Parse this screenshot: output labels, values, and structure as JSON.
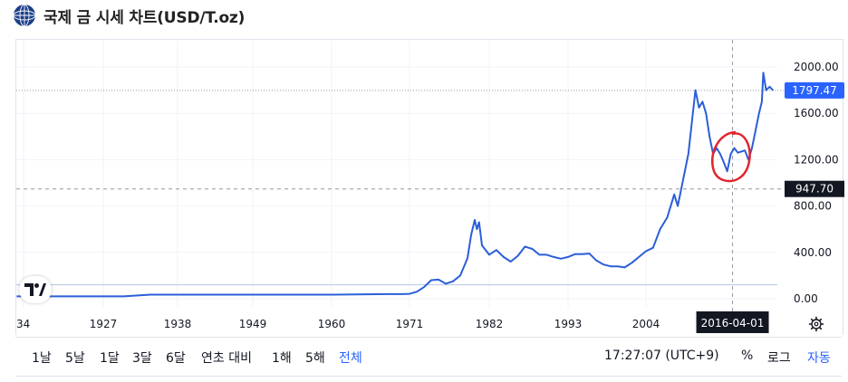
{
  "header": {
    "title": "국제 금 시세 차트(USD/T.oz)",
    "logo_icon": "globe-logo-icon"
  },
  "chart_data": {
    "type": "line",
    "x_tick_labels": [
      "34",
      "1927",
      "1938",
      "1949",
      "1960",
      "1971",
      "1982",
      "1993",
      "2004"
    ],
    "y_tick_labels": [
      "2000.00",
      "1600.00",
      "1200.00",
      "800.00",
      "400.00",
      "0.00"
    ],
    "y_ticks": [
      2000,
      1600,
      1200,
      800,
      400,
      0
    ],
    "ylim": [
      -100,
      2100
    ],
    "xlim": [
      1914,
      2022
    ],
    "series": [
      {
        "color": "#2b5ed8",
        "x": [
          1914,
          1920,
          1930,
          1934,
          1950,
          1960,
          1968,
          1970,
          1971,
          1972,
          1973,
          1974,
          1975,
          1976,
          1977,
          1978,
          1979,
          1979.5,
          1980,
          1980.3,
          1980.6,
          1981,
          1982,
          1983,
          1984,
          1985,
          1986,
          1987,
          1988,
          1989,
          1990,
          1991,
          1992,
          1993,
          1994,
          1995,
          1996,
          1997,
          1998,
          1999,
          2000,
          2001,
          2002,
          2003,
          2004,
          2005,
          2006,
          2007,
          2008,
          2008.5,
          2009,
          2010,
          2011,
          2011.5,
          2012,
          2012.5,
          2013,
          2013.5,
          2014,
          2014.5,
          2015,
          2015.5,
          2016,
          2016.5,
          2017,
          2018,
          2018.5,
          2019,
          2019.5,
          2020,
          2020.4,
          2020.6,
          2021,
          2021.5,
          2022
        ],
        "y": [
          20,
          20,
          20,
          35,
          35,
          35,
          40,
          40,
          42,
          60,
          100,
          160,
          165,
          130,
          150,
          200,
          350,
          550,
          680,
          600,
          660,
          460,
          380,
          420,
          360,
          320,
          370,
          450,
          430,
          380,
          380,
          360,
          345,
          360,
          385,
          385,
          390,
          330,
          295,
          280,
          280,
          270,
          310,
          360,
          410,
          440,
          600,
          700,
          900,
          800,
          950,
          1250,
          1800,
          1650,
          1700,
          1600,
          1400,
          1250,
          1300,
          1250,
          1180,
          1100,
          1250,
          1300,
          1260,
          1280,
          1200,
          1300,
          1450,
          1600,
          1700,
          1950,
          1800,
          1830,
          1797.47
        ]
      }
    ],
    "last_price": 1797.47,
    "last_price_label": "1797.47",
    "crosshair_price": 947.7,
    "crosshair_price_label": "947.70",
    "crosshair_x": 2016.25,
    "crosshair_date_label": "2016-04-01",
    "baseline_value": 120,
    "annotation": "red hand-drawn circle around 2013-2016 dip"
  },
  "toolbar": {
    "timeframes": [
      {
        "label": "1날",
        "active": false
      },
      {
        "label": "5날",
        "active": false
      },
      {
        "label": "1달",
        "active": false
      },
      {
        "label": "3달",
        "active": false
      },
      {
        "label": "6달",
        "active": false
      },
      {
        "label": "연초 대비",
        "active": false
      },
      {
        "label": "1해",
        "active": false
      },
      {
        "label": "5해",
        "active": false
      },
      {
        "label": "전체",
        "active": true
      }
    ],
    "clock": "17:27:07 (UTC+9)",
    "percent_label": "%",
    "log_label": "로그",
    "auto_label": "자동"
  },
  "colors": {
    "accent": "#2962ff",
    "line": "#2b5ed8",
    "annotation": "#e0262e",
    "crosshair_label_bg": "#131722"
  },
  "icons": {
    "settings": "gear-icon",
    "brand": "tradingview-logo-icon"
  }
}
